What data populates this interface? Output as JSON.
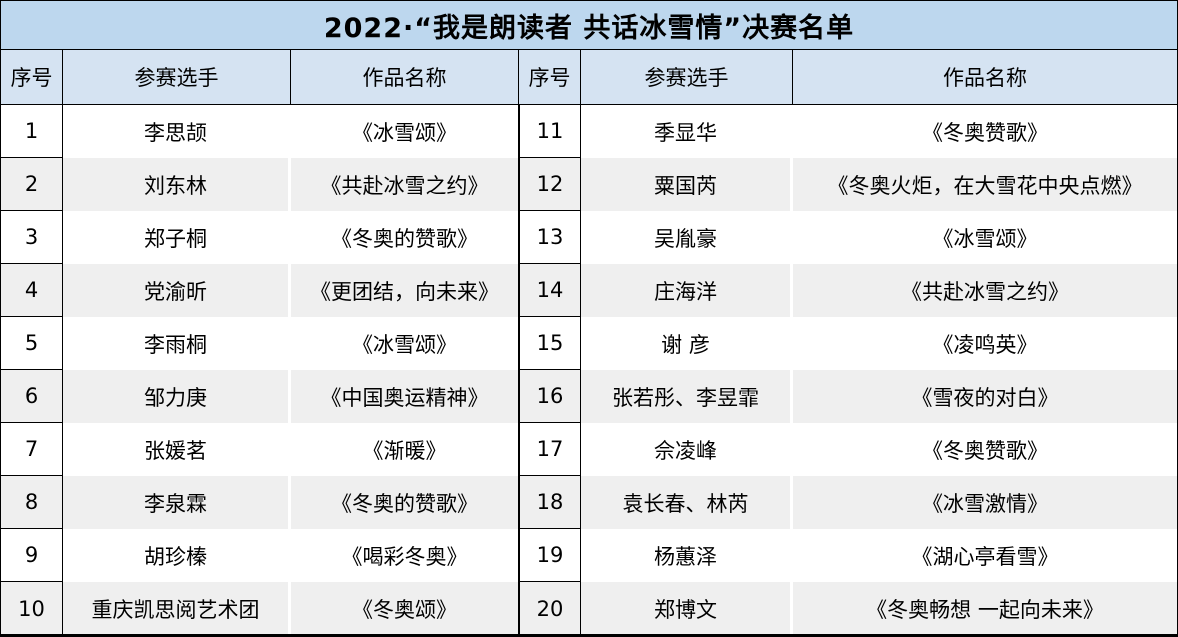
{
  "title": "2022·“我是朗读者 共话冰雪情”决赛名单",
  "columns": {
    "no": "序号",
    "name": "参赛选手",
    "work": "作品名称"
  },
  "colors": {
    "title_bg": "#BDD7EE",
    "header_bg": "#D5E3F2",
    "stripe_bg": "#EFEFEF",
    "border": "#000000"
  },
  "left_rows": [
    {
      "no": "1",
      "name": "李思颉",
      "work": "《冰雪颂》"
    },
    {
      "no": "2",
      "name": "刘东林",
      "work": "《共赴冰雪之约》"
    },
    {
      "no": "3",
      "name": "郑子桐",
      "work": "《冬奥的赞歌》"
    },
    {
      "no": "4",
      "name": "党渝昕",
      "work": "《更团结，向未来》"
    },
    {
      "no": "5",
      "name": "李雨桐",
      "work": "《冰雪颂》"
    },
    {
      "no": "6",
      "name": "邹力庚",
      "work": "《中国奥运精神》"
    },
    {
      "no": "7",
      "name": "张媛茗",
      "work": "《渐暖》"
    },
    {
      "no": "8",
      "name": "李泉霖",
      "work": "《冬奥的赞歌》"
    },
    {
      "no": "9",
      "name": "胡珍榛",
      "work": "《喝彩冬奥》"
    },
    {
      "no": "10",
      "name": "重庆凯思阅艺术团",
      "work": "《冬奥颂》"
    }
  ],
  "right_rows": [
    {
      "no": "11",
      "name": "季显华",
      "work": "《冬奥赞歌》"
    },
    {
      "no": "12",
      "name": "粟国芮",
      "work": "《冬奥火炬，在大雪花中央点燃》"
    },
    {
      "no": "13",
      "name": "吴胤豪",
      "work": "《冰雪颂》"
    },
    {
      "no": "14",
      "name": "庄海洋",
      "work": "《共赴冰雪之约》"
    },
    {
      "no": "15",
      "name": "谢 彦",
      "work": "《凌鸣英》"
    },
    {
      "no": "16",
      "name": "张若彤、李昱霏",
      "work": "《雪夜的对白》"
    },
    {
      "no": "17",
      "name": "佘凌峰",
      "work": "《冬奥赞歌》"
    },
    {
      "no": "18",
      "name": "袁长春、林芮",
      "work": "《冰雪激情》"
    },
    {
      "no": "19",
      "name": "杨蕙泽",
      "work": "《湖心亭看雪》"
    },
    {
      "no": "20",
      "name": "郑博文",
      "work": "《冬奥畅想 一起向未来》"
    }
  ]
}
